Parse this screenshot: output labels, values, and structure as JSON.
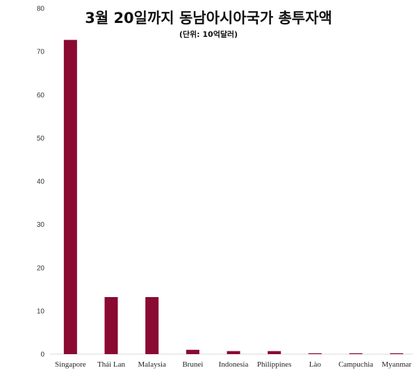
{
  "chart_data": {
    "type": "bar",
    "title": "3월 20일까지 동남아시아국가 총투자액",
    "subtitle": "(단위: 10억달러)",
    "categories": [
      "Singapore",
      "Thái Lan",
      "Malaysia",
      "Brunei",
      "Indonesia",
      "Philippines",
      "Lào",
      "Campuchia",
      "Myanmar"
    ],
    "values": [
      72.7,
      13.2,
      13.2,
      1.0,
      0.7,
      0.7,
      0.2,
      0.2,
      0.2
    ],
    "ylim": [
      0,
      80
    ],
    "yticks": [
      "0",
      "10",
      "20",
      "30",
      "40",
      "50",
      "60",
      "70",
      "80"
    ],
    "grid": false,
    "bar_color": "#8a0a32"
  }
}
